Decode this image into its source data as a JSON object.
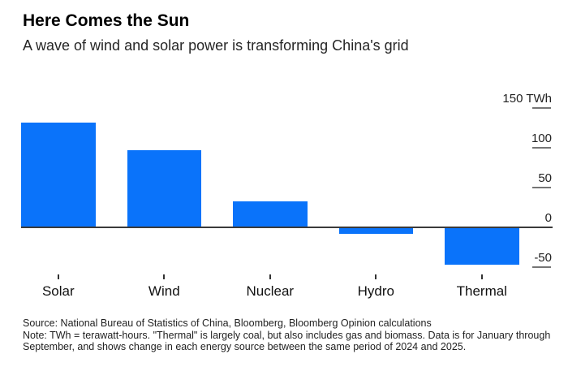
{
  "title": "Here Comes the Sun",
  "subtitle": "A wave of wind and solar power is transforming China's grid",
  "footer": {
    "source": "Source: National Bureau of Statistics of China, Bloomberg, Bloomberg Opinion calculations",
    "note": "Note: TWh = terawatt-hours. \"Thermal\" is largely coal, but also includes gas and biomass. Data is for January through September, and shows change in each energy source between the same period of 2024 and 2025."
  },
  "chart_data": {
    "type": "bar",
    "title": "Here Comes the Sun",
    "subtitle": "A wave of wind and solar power is transforming China's grid",
    "categories": [
      "Solar",
      "Wind",
      "Nuclear",
      "Hydro",
      "Thermal"
    ],
    "values": [
      132,
      97,
      33,
      -8,
      -47
    ],
    "unit": "TWh",
    "xlabel": "",
    "ylabel": "TWh",
    "ylim": [
      -60,
      155
    ],
    "y_ticks": [
      {
        "value": 150,
        "label": "150 TWh"
      },
      {
        "value": 100,
        "label": "100"
      },
      {
        "value": 50,
        "label": "50"
      },
      {
        "value": 0,
        "label": "0"
      },
      {
        "value": -50,
        "label": "-50"
      }
    ],
    "grid": false,
    "axis_side": "right",
    "legend": "none",
    "bar_color": "#0a73fa",
    "axis_line_color": "#3a3a3a",
    "tick_color": "#757575"
  }
}
